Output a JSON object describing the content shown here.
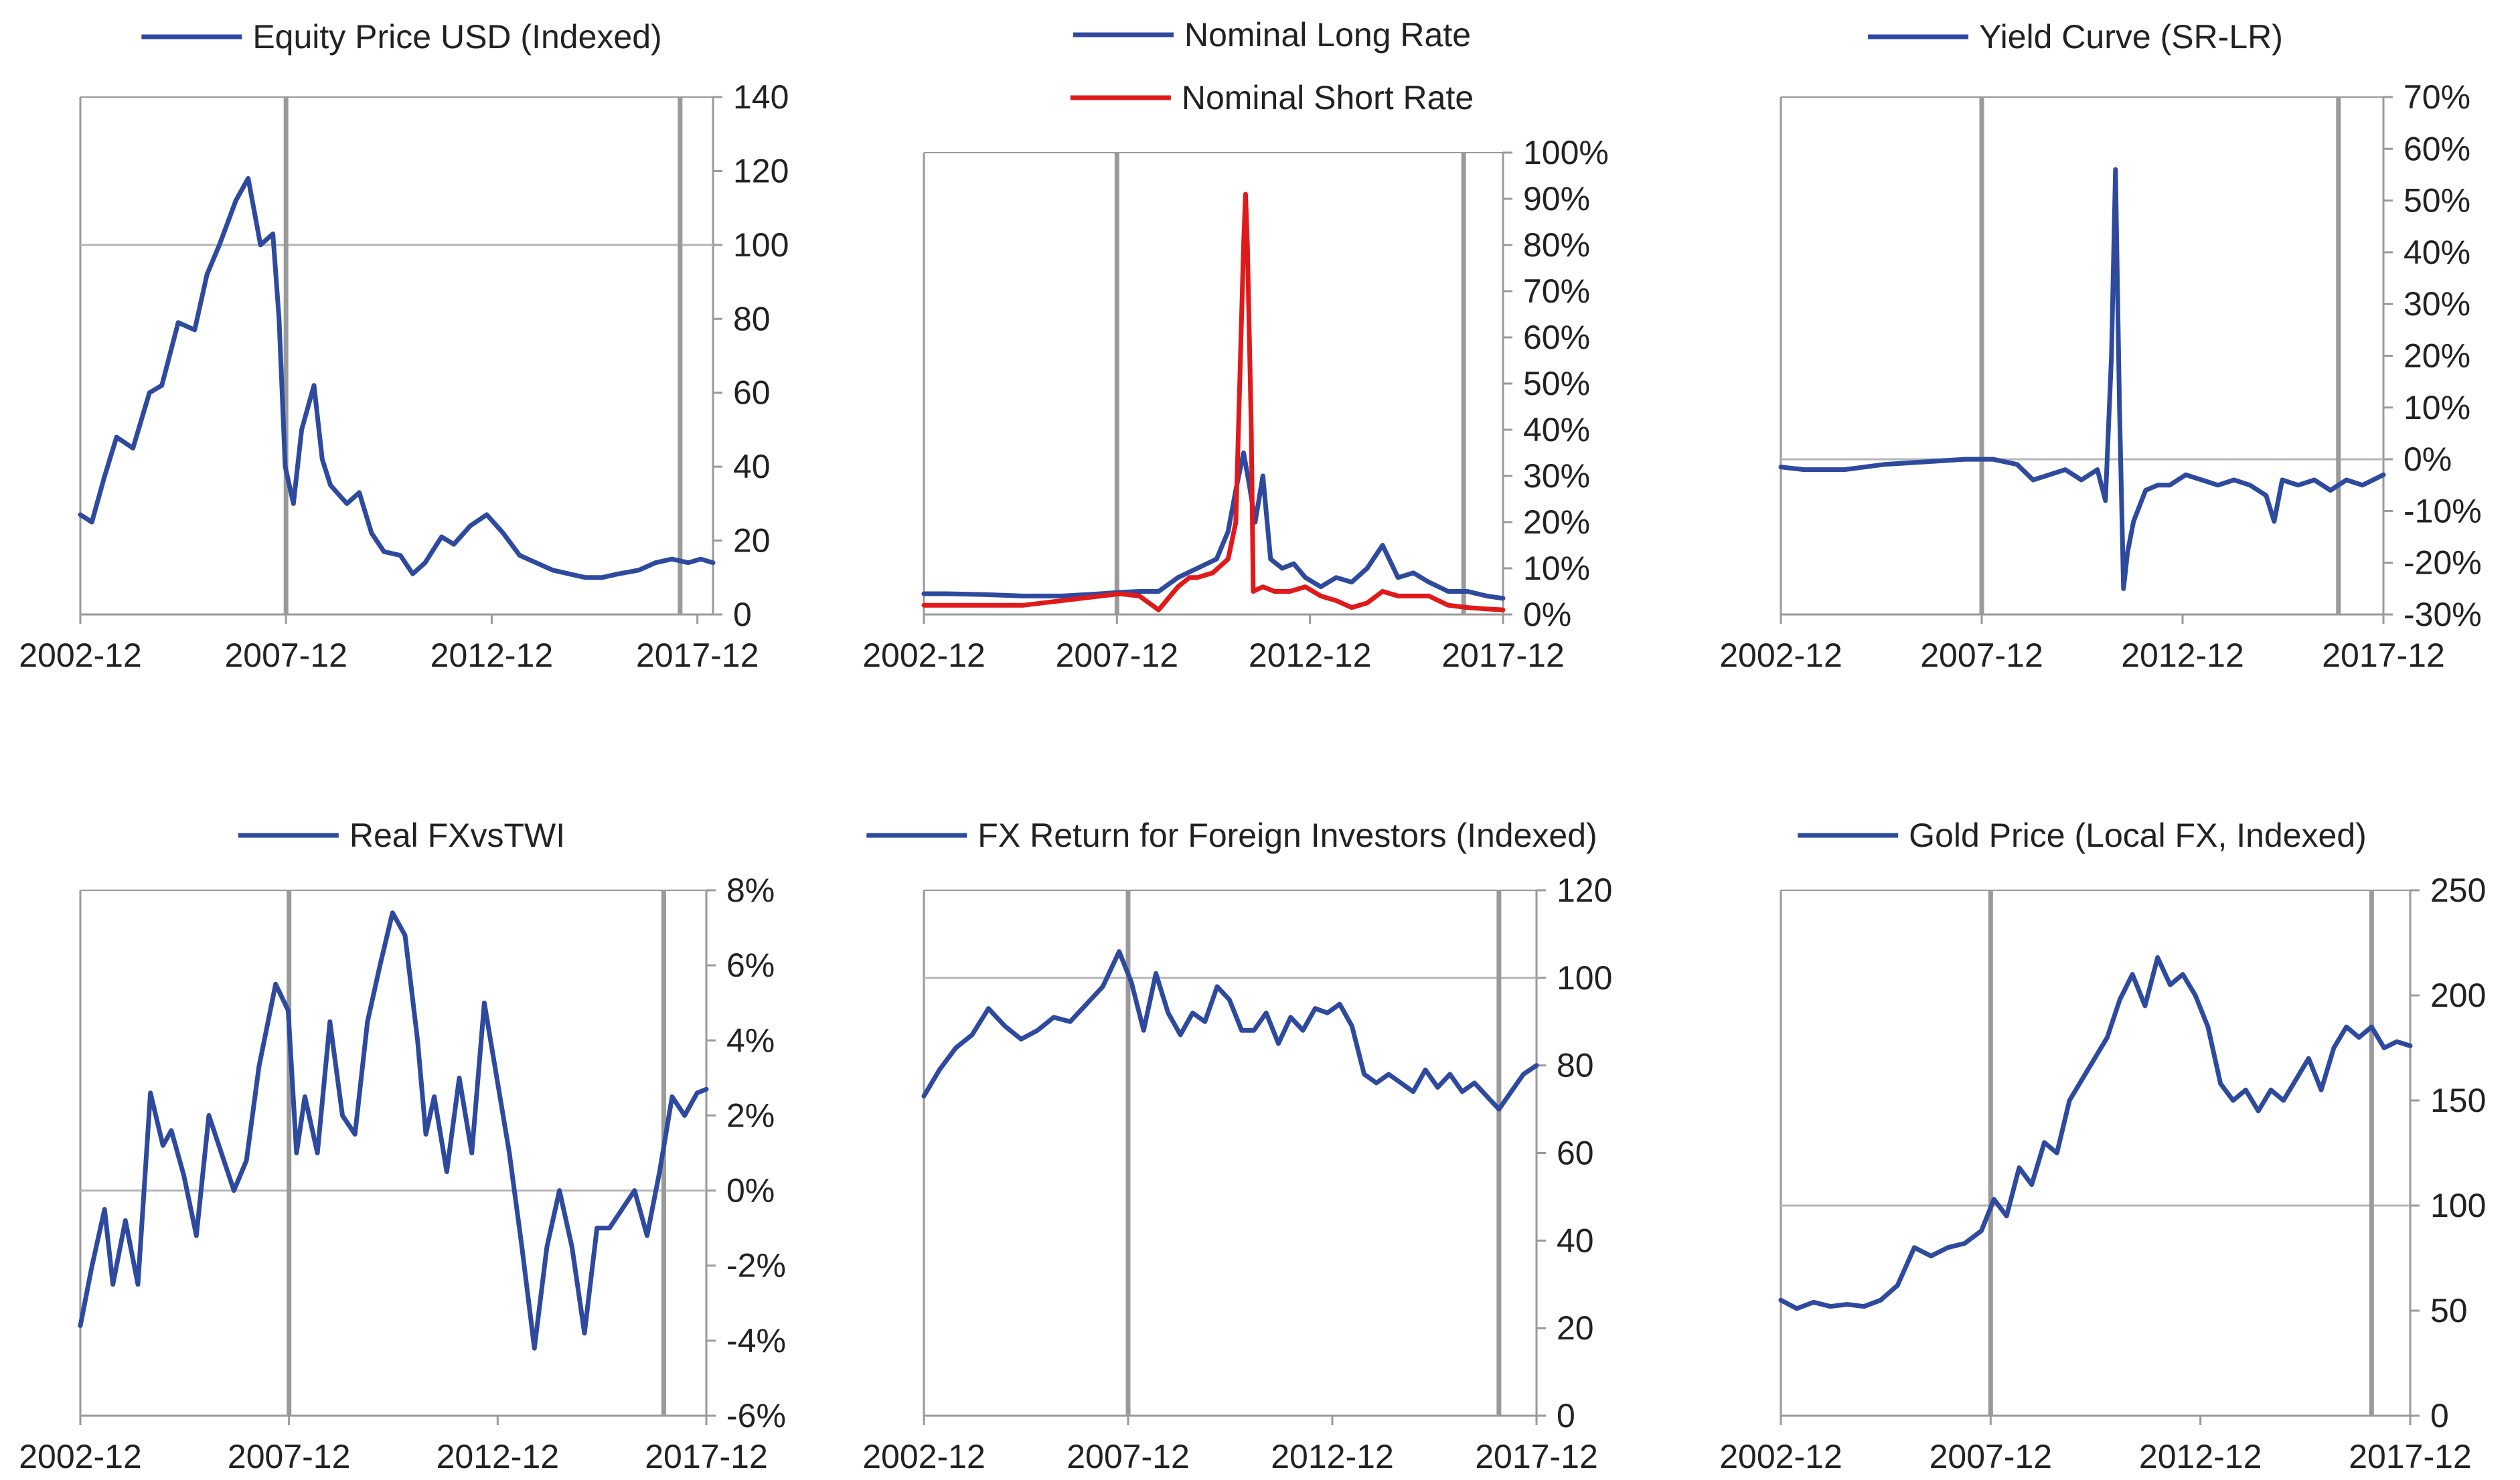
{
  "colors": {
    "blue": "#2E4A9E",
    "red": "#E0191B",
    "axis": "#9a9a9a",
    "marker": "#9a9a9a",
    "text": "#222222"
  },
  "x_ticks": [
    "2002-12",
    "2007-12",
    "2012-12",
    "2017-12"
  ],
  "chart_data": [
    {
      "type": "line",
      "title": "",
      "ylim": [
        0,
        140
      ],
      "y_ticks": [
        "0",
        "20",
        "40",
        "60",
        "80",
        "100",
        "120",
        "140"
      ],
      "y_tick_values": [
        0,
        20,
        40,
        60,
        80,
        100,
        120,
        140
      ],
      "reference_line": 100,
      "x_range": [
        2002.92,
        2018.3
      ],
      "grid": false,
      "legend_position": "top",
      "vertical_markers": [
        2007.92,
        2017.5
      ],
      "series": [
        {
          "name": "Equity Price USD (Indexed)",
          "color": "blue",
          "x": [
            2002.92,
            2003.2,
            2003.5,
            2003.8,
            2004.2,
            2004.6,
            2004.9,
            2005.3,
            2005.7,
            2006.0,
            2006.3,
            2006.7,
            2007.0,
            2007.3,
            2007.6,
            2007.75,
            2007.9,
            2008.1,
            2008.3,
            2008.6,
            2008.8,
            2009.0,
            2009.4,
            2009.7,
            2010.0,
            2010.3,
            2010.7,
            2011.0,
            2011.3,
            2011.7,
            2012.0,
            2012.4,
            2012.8,
            2013.2,
            2013.6,
            2014.0,
            2014.4,
            2014.8,
            2015.2,
            2015.6,
            2016.0,
            2016.5,
            2016.9,
            2017.3,
            2017.7,
            2018.0,
            2018.3
          ],
          "values": [
            27,
            25,
            37,
            48,
            45,
            60,
            62,
            79,
            77,
            92,
            100,
            112,
            118,
            100,
            103,
            80,
            40,
            30,
            50,
            62,
            42,
            35,
            30,
            33,
            22,
            17,
            16,
            11,
            14,
            21,
            19,
            24,
            27,
            22,
            16,
            14,
            12,
            11,
            10,
            10,
            11,
            12,
            14,
            15,
            14,
            15,
            14
          ]
        }
      ]
    },
    {
      "type": "line",
      "title": "",
      "ylim": [
        0,
        100
      ],
      "y_ticks": [
        "0%",
        "10%",
        "20%",
        "30%",
        "40%",
        "50%",
        "60%",
        "70%",
        "80%",
        "90%",
        "100%"
      ],
      "y_tick_values": [
        0,
        10,
        20,
        30,
        40,
        50,
        60,
        70,
        80,
        90,
        100
      ],
      "reference_line": null,
      "x_range": [
        2002.92,
        2017.92
      ],
      "grid": false,
      "legend_position": "top",
      "vertical_markers": [
        2007.92,
        2016.9
      ],
      "series": [
        {
          "name": "Nominal Long Rate",
          "color": "blue",
          "x": [
            2002.92,
            2003.5,
            2004.5,
            2005.5,
            2006.5,
            2007.5,
            2008.0,
            2008.5,
            2009.0,
            2009.5,
            2010.0,
            2010.5,
            2010.8,
            2011.0,
            2011.2,
            2011.35,
            2011.5,
            2011.7,
            2011.9,
            2012.2,
            2012.5,
            2012.8,
            2013.2,
            2013.6,
            2014.0,
            2014.4,
            2014.8,
            2015.2,
            2015.6,
            2016.0,
            2016.5,
            2017.0,
            2017.5,
            2017.92
          ],
          "values": [
            4.5,
            4.5,
            4.3,
            4,
            4,
            4.5,
            4.8,
            5,
            5,
            8,
            10,
            12,
            18,
            27,
            35,
            28,
            20,
            30,
            12,
            10,
            11,
            8,
            6,
            8,
            7,
            10,
            15,
            8,
            9,
            7,
            5,
            5,
            4,
            3.5
          ]
        },
        {
          "name": "Nominal Short Rate",
          "color": "red",
          "x": [
            2002.92,
            2003.5,
            2004.5,
            2005.5,
            2006.5,
            2007.5,
            2008.0,
            2008.5,
            2009.0,
            2009.5,
            2009.8,
            2010.0,
            2010.4,
            2010.8,
            2011.0,
            2011.1,
            2011.2,
            2011.25,
            2011.3,
            2011.4,
            2011.45,
            2011.7,
            2012.0,
            2012.4,
            2012.8,
            2013.2,
            2013.6,
            2014.0,
            2014.4,
            2014.8,
            2015.2,
            2015.6,
            2016.0,
            2016.5,
            2017.0,
            2017.5,
            2017.92
          ],
          "values": [
            2,
            2,
            2,
            2,
            3,
            4,
            4.5,
            4,
            1,
            6,
            8,
            8,
            9,
            12,
            20,
            50,
            80,
            91,
            80,
            40,
            5,
            6,
            5,
            5,
            6,
            4,
            3,
            1.5,
            2.5,
            5,
            4,
            4,
            4,
            2,
            1.5,
            1.2,
            1
          ]
        }
      ]
    },
    {
      "type": "line",
      "title": "",
      "ylim": [
        -30,
        70
      ],
      "y_ticks": [
        "-30%",
        "-20%",
        "-10%",
        "0%",
        "10%",
        "20%",
        "30%",
        "40%",
        "50%",
        "60%",
        "70%"
      ],
      "y_tick_values": [
        -30,
        -20,
        -10,
        0,
        10,
        20,
        30,
        40,
        50,
        60,
        70
      ],
      "reference_line": 0,
      "x_range": [
        2002.92,
        2017.92
      ],
      "grid": false,
      "legend_position": "top",
      "vertical_markers": [
        2007.92,
        2016.8
      ],
      "series": [
        {
          "name": "Yield Curve (SR-LR)",
          "color": "blue",
          "x": [
            2002.92,
            2003.5,
            2004.5,
            2005.5,
            2006.5,
            2007.5,
            2008.2,
            2008.8,
            2009.2,
            2009.6,
            2010.0,
            2010.4,
            2010.8,
            2011.0,
            2011.15,
            2011.25,
            2011.35,
            2011.45,
            2011.55,
            2011.7,
            2012.0,
            2012.3,
            2012.6,
            2013.0,
            2013.4,
            2013.8,
            2014.2,
            2014.6,
            2015.0,
            2015.2,
            2015.4,
            2015.8,
            2016.2,
            2016.6,
            2017.0,
            2017.4,
            2017.92
          ],
          "values": [
            -1.5,
            -2,
            -2,
            -1,
            -0.5,
            0,
            0,
            -1,
            -4,
            -3,
            -2,
            -4,
            -2,
            -8,
            20,
            56,
            10,
            -25,
            -18,
            -12,
            -6,
            -5,
            -5,
            -3,
            -4,
            -5,
            -4,
            -5,
            -7,
            -12,
            -4,
            -5,
            -4,
            -6,
            -4,
            -5,
            -3
          ]
        }
      ]
    },
    {
      "type": "line",
      "title": "",
      "ylim": [
        -6,
        8
      ],
      "y_ticks": [
        "-6%",
        "-4%",
        "-2%",
        "0%",
        "2%",
        "4%",
        "6%",
        "8%"
      ],
      "y_tick_values": [
        -6,
        -4,
        -2,
        0,
        2,
        4,
        6,
        8
      ],
      "reference_line": 0,
      "x_range": [
        2002.92,
        2017.92
      ],
      "grid": false,
      "legend_position": "top",
      "vertical_markers": [
        2007.92,
        2016.9
      ],
      "series": [
        {
          "name": "Real FXvsTWI",
          "color": "blue",
          "x": [
            2002.92,
            2003.2,
            2003.5,
            2003.7,
            2004.0,
            2004.3,
            2004.6,
            2004.9,
            2005.1,
            2005.4,
            2005.7,
            2006.0,
            2006.3,
            2006.6,
            2006.9,
            2007.2,
            2007.6,
            2007.9,
            2008.1,
            2008.3,
            2008.6,
            2008.9,
            2009.2,
            2009.5,
            2009.8,
            2010.1,
            2010.4,
            2010.7,
            2011.0,
            2011.2,
            2011.4,
            2011.7,
            2012.0,
            2012.3,
            2012.6,
            2012.9,
            2013.2,
            2013.5,
            2013.8,
            2014.1,
            2014.4,
            2014.7,
            2015.0,
            2015.3,
            2015.6,
            2015.9,
            2016.2,
            2016.5,
            2016.8,
            2017.1,
            2017.4,
            2017.7,
            2017.92
          ],
          "values": [
            -3.6,
            -2.0,
            -0.5,
            -2.5,
            -0.8,
            -2.5,
            2.6,
            1.2,
            1.6,
            0.4,
            -1.2,
            2.0,
            1.0,
            0.0,
            0.8,
            3.3,
            5.5,
            4.8,
            1.0,
            2.5,
            1.0,
            4.5,
            2.0,
            1.5,
            4.5,
            6.0,
            7.4,
            6.8,
            4.0,
            1.5,
            2.5,
            0.5,
            3.0,
            1.0,
            5.0,
            3.0,
            1.0,
            -1.5,
            -4.2,
            -1.5,
            0.0,
            -1.5,
            -3.8,
            -1.0,
            -1.0,
            -0.5,
            0.0,
            -1.2,
            0.5,
            2.5,
            2.0,
            2.6,
            2.7
          ]
        }
      ]
    },
    {
      "type": "line",
      "title": "",
      "ylim": [
        0,
        120
      ],
      "y_ticks": [
        "0",
        "20",
        "40",
        "60",
        "80",
        "100",
        "120"
      ],
      "y_tick_values": [
        0,
        20,
        40,
        60,
        80,
        100,
        120
      ],
      "reference_line": 100,
      "x_range": [
        2002.92,
        2017.92
      ],
      "grid": false,
      "legend_position": "top",
      "vertical_markers": [
        2007.92,
        2017.0
      ],
      "series": [
        {
          "name": "FX Return for Foreign Investors (Indexed)",
          "color": "blue",
          "x": [
            2002.92,
            2003.3,
            2003.7,
            2004.1,
            2004.5,
            2004.9,
            2005.3,
            2005.7,
            2006.1,
            2006.5,
            2006.9,
            2007.3,
            2007.7,
            2008.0,
            2008.3,
            2008.6,
            2008.9,
            2009.2,
            2009.5,
            2009.8,
            2010.1,
            2010.4,
            2010.7,
            2011.0,
            2011.3,
            2011.6,
            2011.9,
            2012.2,
            2012.5,
            2012.8,
            2013.1,
            2013.4,
            2013.7,
            2014.0,
            2014.3,
            2014.6,
            2014.9,
            2015.2,
            2015.5,
            2015.8,
            2016.1,
            2016.4,
            2016.7,
            2017.0,
            2017.3,
            2017.6,
            2017.92
          ],
          "values": [
            73,
            79,
            84,
            87,
            93,
            89,
            86,
            88,
            91,
            90,
            94,
            98,
            106,
            99,
            88,
            101,
            92,
            87,
            92,
            90,
            98,
            95,
            88,
            88,
            92,
            85,
            91,
            88,
            93,
            92,
            94,
            89,
            78,
            76,
            78,
            76,
            74,
            79,
            75,
            78,
            74,
            76,
            73,
            70,
            74,
            78,
            80
          ]
        }
      ]
    },
    {
      "type": "line",
      "title": "",
      "ylim": [
        0,
        250
      ],
      "y_ticks": [
        "0",
        "50",
        "100",
        "150",
        "200",
        "250"
      ],
      "y_tick_values": [
        0,
        50,
        100,
        150,
        200,
        250
      ],
      "reference_line": 100,
      "x_range": [
        2002.92,
        2017.92
      ],
      "grid": false,
      "legend_position": "top",
      "vertical_markers": [
        2007.92,
        2017.0
      ],
      "series": [
        {
          "name": "Gold Price (Local FX, Indexed)",
          "color": "blue",
          "x": [
            2002.92,
            2003.3,
            2003.7,
            2004.1,
            2004.5,
            2004.9,
            2005.3,
            2005.7,
            2006.1,
            2006.5,
            2006.9,
            2007.3,
            2007.7,
            2008.0,
            2008.3,
            2008.6,
            2008.9,
            2009.2,
            2009.5,
            2009.8,
            2010.1,
            2010.4,
            2010.7,
            2011.0,
            2011.3,
            2011.6,
            2011.9,
            2012.2,
            2012.5,
            2012.8,
            2013.1,
            2013.4,
            2013.7,
            2014.0,
            2014.3,
            2014.6,
            2014.9,
            2015.2,
            2015.5,
            2015.8,
            2016.1,
            2016.4,
            2016.7,
            2017.0,
            2017.3,
            2017.6,
            2017.92
          ],
          "values": [
            55,
            51,
            54,
            52,
            53,
            52,
            55,
            62,
            80,
            76,
            80,
            82,
            88,
            103,
            95,
            118,
            110,
            130,
            125,
            150,
            160,
            170,
            180,
            198,
            210,
            195,
            218,
            205,
            210,
            200,
            185,
            158,
            150,
            155,
            145,
            155,
            150,
            160,
            170,
            155,
            175,
            185,
            180,
            185,
            175,
            178,
            176
          ]
        }
      ]
    }
  ]
}
